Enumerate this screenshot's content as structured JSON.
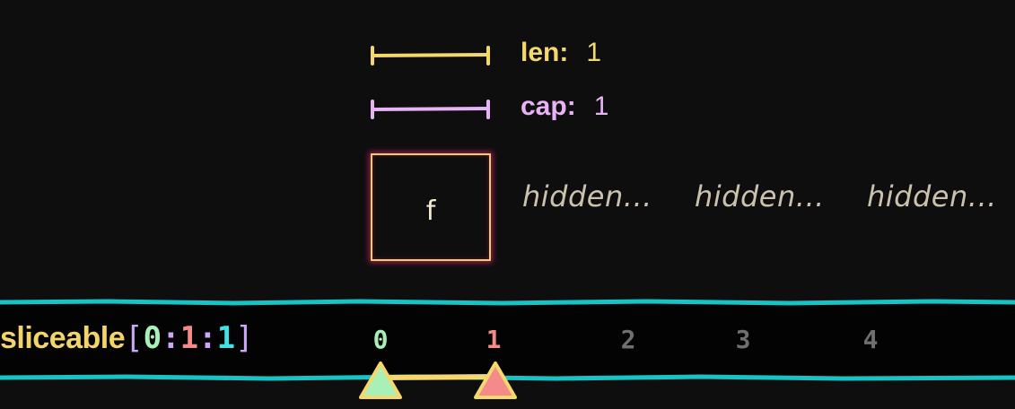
{
  "len": {
    "label": "len:",
    "value": "1"
  },
  "cap": {
    "label": "cap:",
    "value": "1"
  },
  "cells": [
    {
      "value": "f"
    }
  ],
  "hidden_cells": [
    "hidden...",
    "hidden...",
    "hidden..."
  ],
  "expression": {
    "name": "sliceable",
    "open": "[",
    "start": "0",
    "sep1": ":",
    "stop": "1",
    "sep2": ":",
    "step": "1",
    "close": "]"
  },
  "indices": [
    "0",
    "1",
    "2",
    "3",
    "4"
  ],
  "colors": {
    "len": "#f5d86c",
    "cap": "#e8b2f7",
    "start": "#a7f0b8",
    "stop": "#f48a8a",
    "step": "#3fe3e6",
    "band_border": "#17c3c4",
    "inactive_index": "#6f6f6f"
  }
}
